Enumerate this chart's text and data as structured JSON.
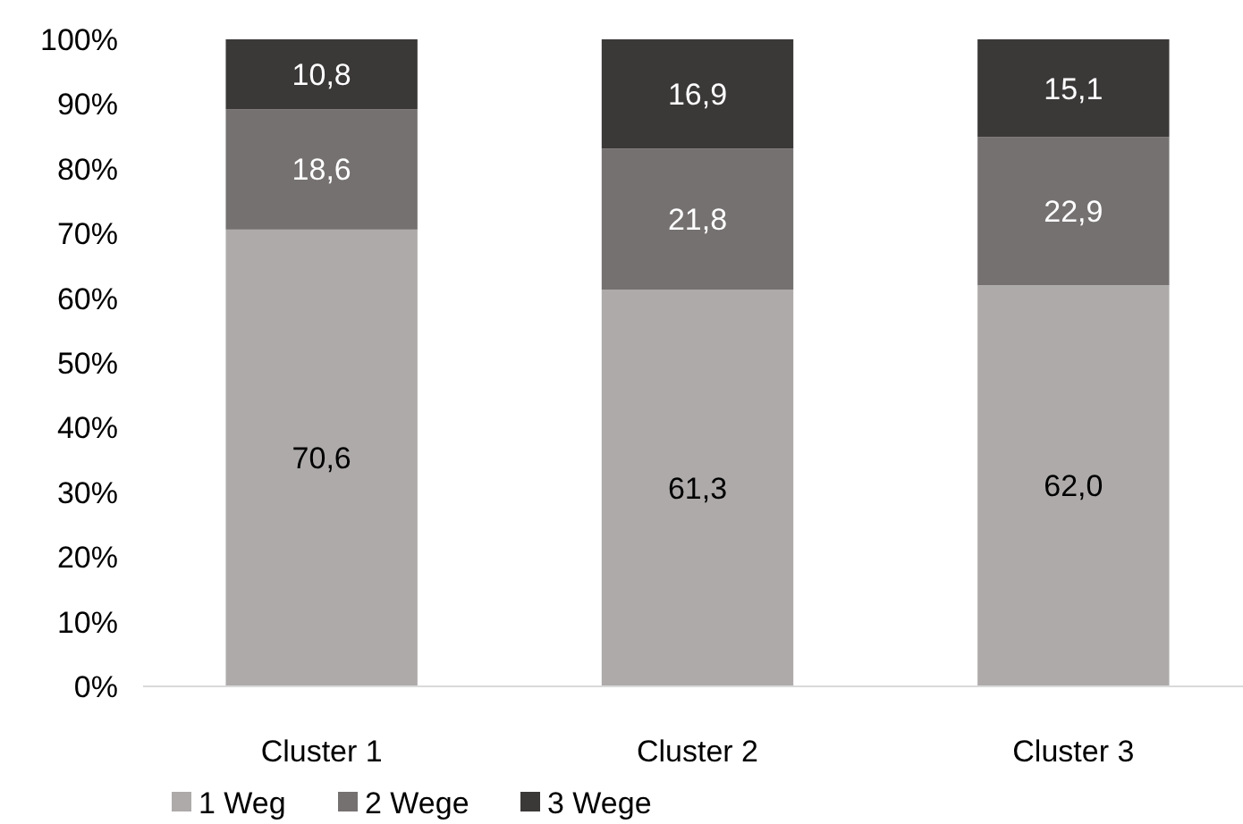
{
  "chart_data": {
    "type": "bar",
    "stacked": true,
    "categories": [
      "Cluster 1",
      "Cluster 2",
      "Cluster 3"
    ],
    "series": [
      {
        "name": "1 Weg",
        "color": "#aeaaaa",
        "values": [
          70.6,
          61.3,
          62.0
        ],
        "value_labels": [
          "70,6",
          "61,3",
          "62,0"
        ]
      },
      {
        "name": "2 Wege",
        "color": "#767171",
        "values": [
          18.6,
          21.8,
          22.9
        ],
        "value_labels": [
          "18,6",
          "21,8",
          "22,9"
        ]
      },
      {
        "name": "3 Wege",
        "color": "#3b3838",
        "values": [
          10.8,
          16.9,
          15.1
        ],
        "value_labels": [
          "10,8",
          "16,9",
          "15,1"
        ]
      }
    ],
    "ylim": [
      0,
      100
    ],
    "yticks": [
      {
        "value": 0,
        "label": "0%"
      },
      {
        "value": 10,
        "label": "10%"
      },
      {
        "value": 20,
        "label": "20%"
      },
      {
        "value": 30,
        "label": "30%"
      },
      {
        "value": 40,
        "label": "40%"
      },
      {
        "value": 50,
        "label": "50%"
      },
      {
        "value": 60,
        "label": "60%"
      },
      {
        "value": 70,
        "label": "70%"
      },
      {
        "value": 80,
        "label": "80%"
      },
      {
        "value": 90,
        "label": "90%"
      },
      {
        "value": 100,
        "label": "100%"
      }
    ],
    "grid": false,
    "legend": "bottom left"
  }
}
